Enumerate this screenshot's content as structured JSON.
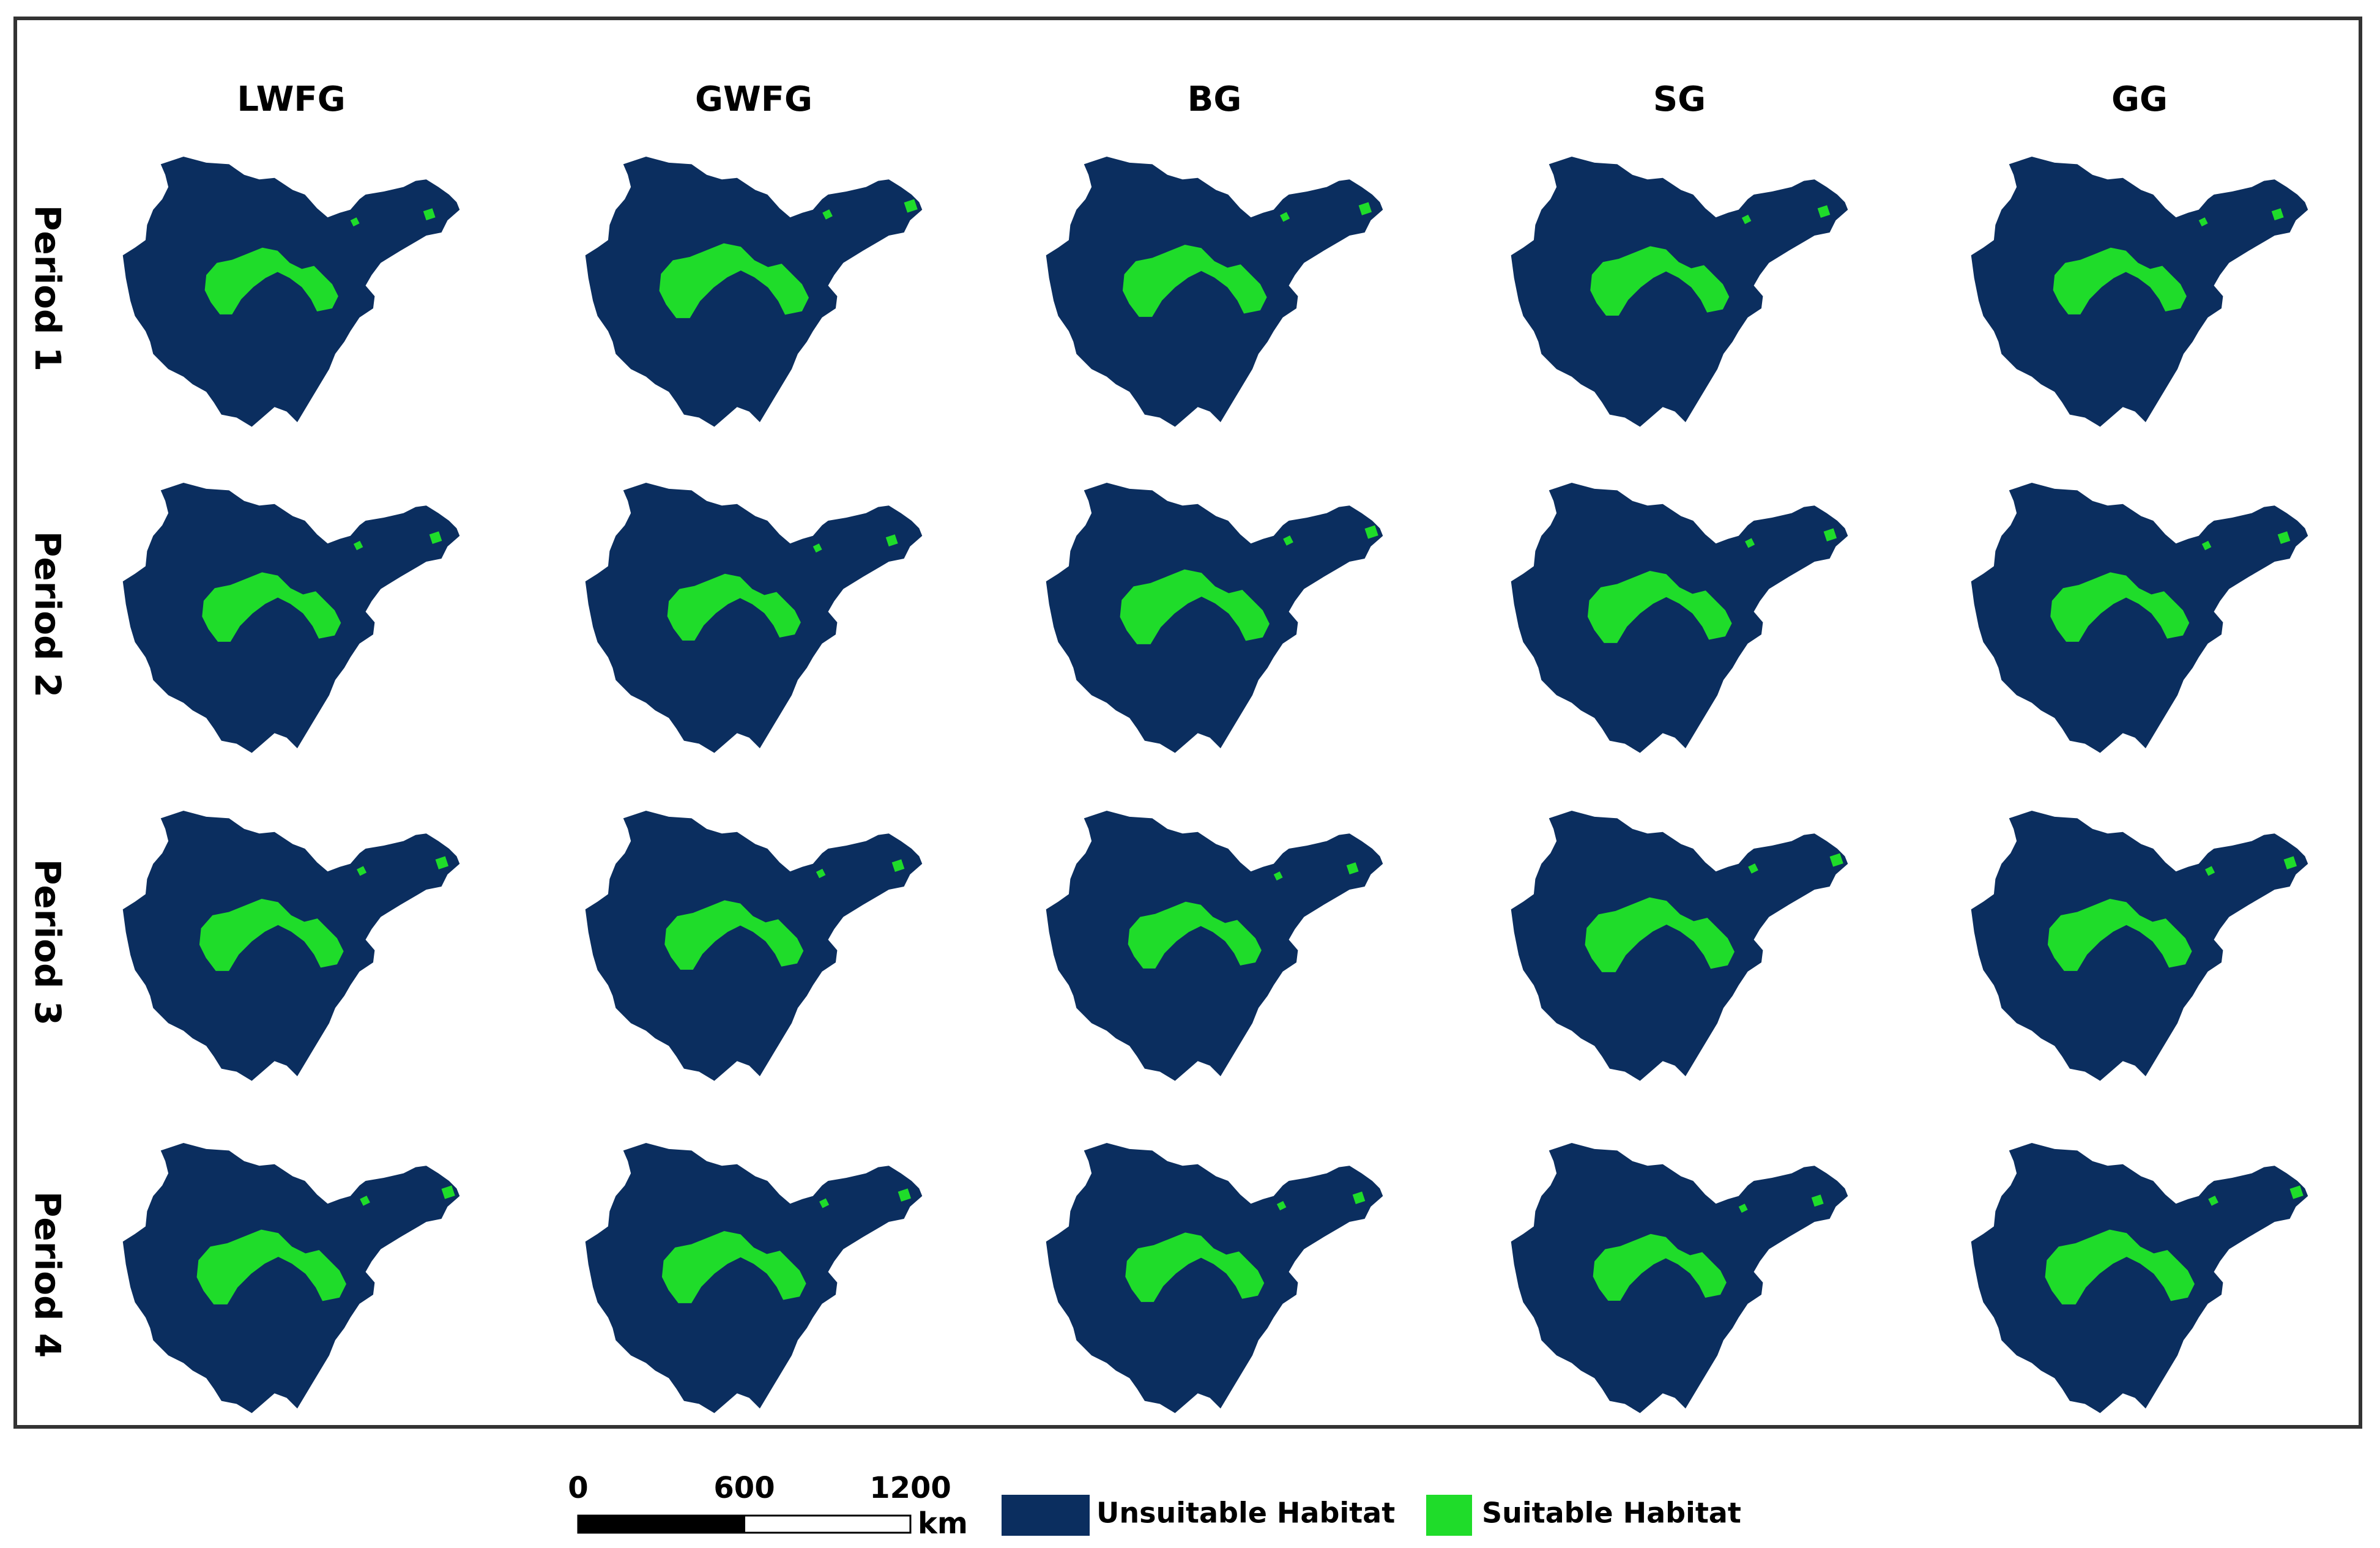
{
  "columns": [
    "LWFG",
    "GWFG",
    "BG",
    "SG",
    "GG"
  ],
  "rows": [
    "Period 1",
    "Period 2",
    "Period 3",
    "Period 4"
  ],
  "scale_bar": {
    "ticks": [
      0,
      600,
      1200
    ],
    "unit": "km"
  },
  "legend": [
    {
      "label": "Unsuitable Habitat",
      "color": "#0b2e5f"
    },
    {
      "label": "Suitable Habitat",
      "color": "#1fdc2a"
    }
  ]
}
